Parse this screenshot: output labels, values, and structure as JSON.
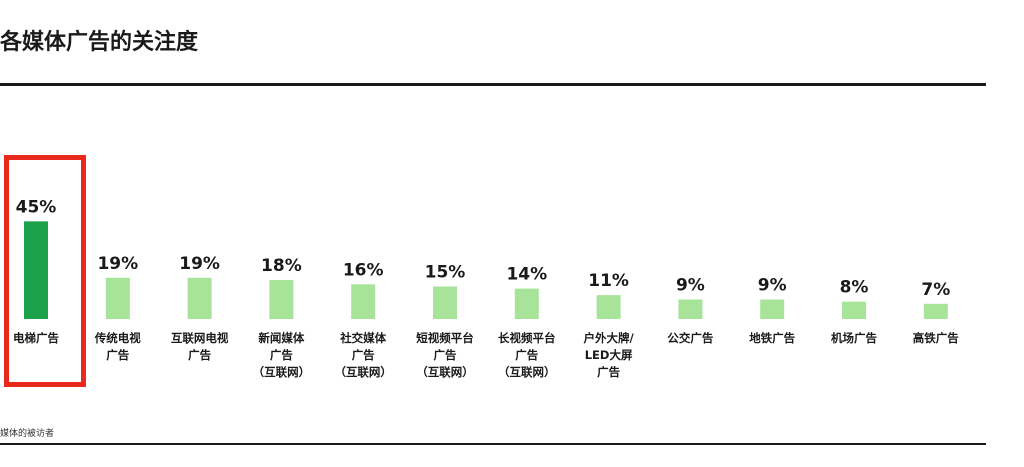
{
  "page": {
    "title": "各媒体广告的关注度",
    "footnote": "媒体的被访者"
  },
  "colors": {
    "highlight_bar": "#1aa14a",
    "normal_bar": "#a8e39a",
    "highlight_box": "#e8291c",
    "text": "#1a1a1a"
  },
  "chart_data": {
    "type": "bar",
    "title": "各媒体广告的关注度",
    "xlabel": "",
    "ylabel": "",
    "ylim": [
      0,
      50
    ],
    "grid": false,
    "categories": [
      "电梯广告",
      "传统电视广告",
      "互联网电视广告",
      "新闻媒体广告（互联网）",
      "社交媒体广告（互联网）",
      "短视频平台广告（互联网）",
      "长视频平台广告（互联网）",
      "户外大牌/LED大屏广告",
      "公交广告",
      "地铁广告",
      "机场广告",
      "高铁广告"
    ],
    "category_lines": [
      [
        "电梯广告"
      ],
      [
        "传统电视",
        "广告"
      ],
      [
        "互联网电视",
        "广告"
      ],
      [
        "新闻媒体",
        "广告",
        "（互联网）"
      ],
      [
        "社交媒体",
        "广告",
        "（互联网）"
      ],
      [
        "短视频平台",
        "广告",
        "（互联网）"
      ],
      [
        "长视频平台",
        "广告",
        "（互联网）"
      ],
      [
        "户外大牌/",
        "LED大屏",
        "广告"
      ],
      [
        "公交广告"
      ],
      [
        "地铁广告"
      ],
      [
        "机场广告"
      ],
      [
        "高铁广告"
      ]
    ],
    "values": [
      45,
      19,
      19,
      18,
      16,
      15,
      14,
      11,
      9,
      9,
      8,
      7
    ],
    "value_labels": [
      "45%",
      "19%",
      "19%",
      "18%",
      "16%",
      "15%",
      "14%",
      "11%",
      "9%",
      "9%",
      "8%",
      "7%"
    ],
    "highlighted_index": 0
  }
}
